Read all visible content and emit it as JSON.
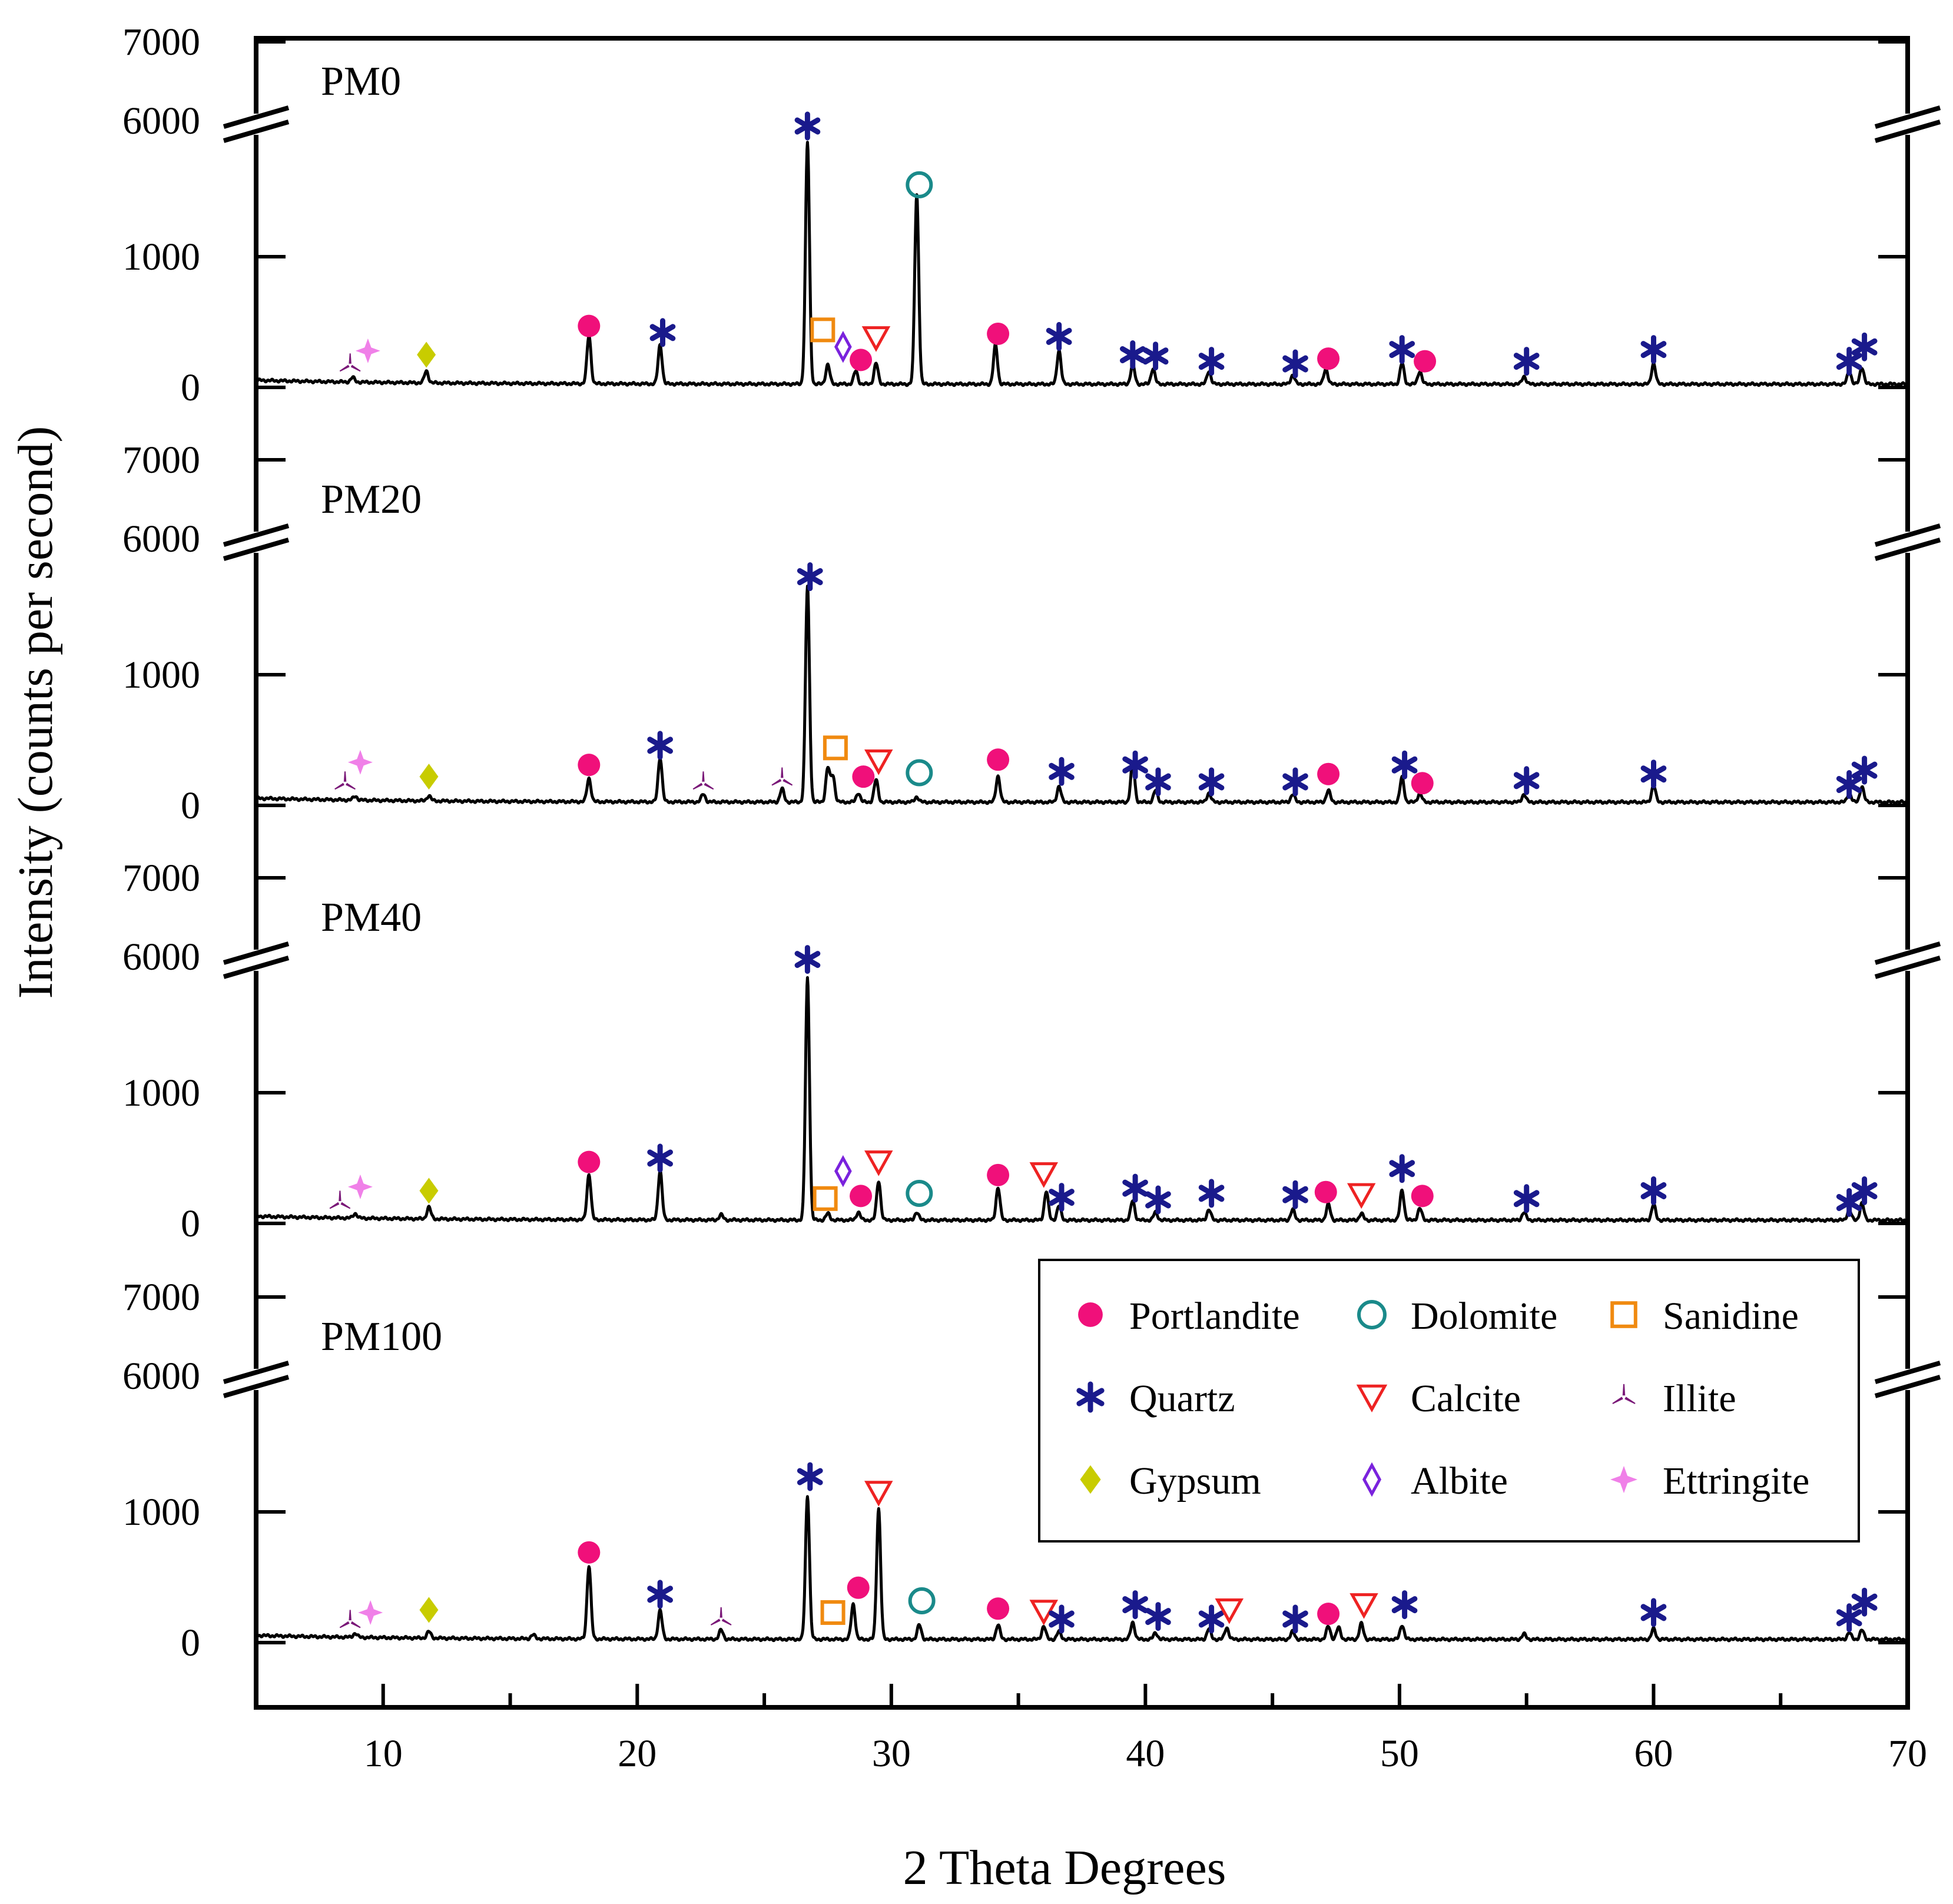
{
  "chart_data": {
    "type": "line",
    "subtype": "stacked XRD patterns with broken y-axis",
    "xlabel": "2 Theta Degrees",
    "ylabel": "Intensity (counts per second)",
    "xlim": [
      5,
      70
    ],
    "x_ticks": [
      10,
      20,
      30,
      40,
      50,
      60,
      70
    ],
    "y_tick_labels": [
      "0",
      "1000",
      "6000",
      "7000"
    ],
    "y_break": "between 1000 and 6000",
    "colors": {
      "Portlandite": "#f0107a",
      "Quartz": "#1a1a8c",
      "Gypsum": "#c8cc00",
      "Dolomite": "#1a8a8a",
      "Calcite": "#ee2222",
      "Albite": "#7a22dd",
      "Sanidine": "#f08a10",
      "Illite": "#7a1878",
      "Ettringite": "#f080e8"
    },
    "legend": [
      {
        "name": "Portlandite",
        "shape": "filled-circle"
      },
      {
        "name": "Dolomite",
        "shape": "open-circle"
      },
      {
        "name": "Sanidine",
        "shape": "open-square"
      },
      {
        "name": "Quartz",
        "shape": "asterisk"
      },
      {
        "name": "Calcite",
        "shape": "open-triangle-down"
      },
      {
        "name": "Illite",
        "shape": "tri-star"
      },
      {
        "name": "Gypsum",
        "shape": "filled-diamond"
      },
      {
        "name": "Albite",
        "shape": "open-diamond"
      },
      {
        "name": "Ettringite",
        "shape": "four-point-star"
      }
    ],
    "series": [
      {
        "name": "PM0",
        "peaks": [
          [
            8.8,
            35
          ],
          [
            11.7,
            90
          ],
          [
            18.1,
            370
          ],
          [
            20.9,
            300
          ],
          [
            26.7,
            1850
          ],
          [
            27.5,
            150
          ],
          [
            28.6,
            100
          ],
          [
            29.4,
            160
          ],
          [
            31.0,
            1450
          ],
          [
            34.1,
            300
          ],
          [
            36.6,
            260
          ],
          [
            39.5,
            150
          ],
          [
            40.3,
            120
          ],
          [
            42.5,
            100
          ],
          [
            45.8,
            70
          ],
          [
            47.1,
            120
          ],
          [
            50.1,
            160
          ],
          [
            50.8,
            100
          ],
          [
            54.9,
            60
          ],
          [
            60.0,
            160
          ],
          [
            67.7,
            100
          ],
          [
            68.2,
            130
          ]
        ],
        "markers": [
          {
            "x": 8.7,
            "i": 170,
            "phase": "Illite"
          },
          {
            "x": 9.4,
            "i": 280,
            "phase": "Ettringite"
          },
          {
            "x": 11.7,
            "i": 250,
            "phase": "Gypsum"
          },
          {
            "x": 18.1,
            "i": 470,
            "phase": "Portlandite"
          },
          {
            "x": 21.0,
            "i": 420,
            "phase": "Quartz"
          },
          {
            "x": 26.7,
            "i": 2000,
            "phase": "Quartz"
          },
          {
            "x": 27.3,
            "i": 440,
            "phase": "Sanidine"
          },
          {
            "x": 28.1,
            "i": 310,
            "phase": "Albite"
          },
          {
            "x": 28.8,
            "i": 210,
            "phase": "Portlandite"
          },
          {
            "x": 29.4,
            "i": 380,
            "phase": "Calcite"
          },
          {
            "x": 31.1,
            "i": 1550,
            "phase": "Dolomite"
          },
          {
            "x": 34.2,
            "i": 410,
            "phase": "Portlandite"
          },
          {
            "x": 36.6,
            "i": 390,
            "phase": "Quartz"
          },
          {
            "x": 39.5,
            "i": 250,
            "phase": "Quartz"
          },
          {
            "x": 40.4,
            "i": 240,
            "phase": "Quartz"
          },
          {
            "x": 42.6,
            "i": 200,
            "phase": "Quartz"
          },
          {
            "x": 45.9,
            "i": 180,
            "phase": "Quartz"
          },
          {
            "x": 47.2,
            "i": 220,
            "phase": "Portlandite"
          },
          {
            "x": 50.1,
            "i": 290,
            "phase": "Quartz"
          },
          {
            "x": 51.0,
            "i": 200,
            "phase": "Portlandite"
          },
          {
            "x": 55.0,
            "i": 200,
            "phase": "Quartz"
          },
          {
            "x": 60.0,
            "i": 290,
            "phase": "Quartz"
          },
          {
            "x": 67.7,
            "i": 200,
            "phase": "Quartz"
          },
          {
            "x": 68.3,
            "i": 310,
            "phase": "Quartz"
          }
        ]
      },
      {
        "name": "PM20",
        "peaks": [
          [
            8.9,
            30
          ],
          [
            11.8,
            40
          ],
          [
            18.1,
            180
          ],
          [
            20.9,
            340
          ],
          [
            22.6,
            60
          ],
          [
            25.7,
            100
          ],
          [
            26.7,
            1650
          ],
          [
            27.5,
            260
          ],
          [
            27.7,
            200
          ],
          [
            28.7,
            70
          ],
          [
            29.4,
            170
          ],
          [
            31.0,
            40
          ],
          [
            34.2,
            200
          ],
          [
            36.6,
            120
          ],
          [
            39.5,
            300
          ],
          [
            40.4,
            90
          ],
          [
            42.5,
            70
          ],
          [
            45.8,
            60
          ],
          [
            47.2,
            90
          ],
          [
            50.1,
            190
          ],
          [
            50.8,
            70
          ],
          [
            54.9,
            60
          ],
          [
            60.0,
            130
          ],
          [
            67.7,
            70
          ],
          [
            68.2,
            120
          ]
        ],
        "markers": [
          {
            "x": 8.5,
            "i": 170,
            "phase": "Illite"
          },
          {
            "x": 9.1,
            "i": 330,
            "phase": "Ettringite"
          },
          {
            "x": 11.8,
            "i": 220,
            "phase": "Gypsum"
          },
          {
            "x": 18.1,
            "i": 310,
            "phase": "Portlandite"
          },
          {
            "x": 20.9,
            "i": 460,
            "phase": "Quartz"
          },
          {
            "x": 22.6,
            "i": 170,
            "phase": "Illite"
          },
          {
            "x": 25.7,
            "i": 200,
            "phase": "Illite"
          },
          {
            "x": 26.8,
            "i": 1750,
            "phase": "Quartz"
          },
          {
            "x": 27.8,
            "i": 440,
            "phase": "Sanidine"
          },
          {
            "x": 28.9,
            "i": 220,
            "phase": "Portlandite"
          },
          {
            "x": 29.5,
            "i": 340,
            "phase": "Calcite"
          },
          {
            "x": 31.1,
            "i": 250,
            "phase": "Dolomite"
          },
          {
            "x": 34.2,
            "i": 350,
            "phase": "Portlandite"
          },
          {
            "x": 36.7,
            "i": 260,
            "phase": "Quartz"
          },
          {
            "x": 39.6,
            "i": 310,
            "phase": "Quartz"
          },
          {
            "x": 40.5,
            "i": 180,
            "phase": "Quartz"
          },
          {
            "x": 42.6,
            "i": 180,
            "phase": "Quartz"
          },
          {
            "x": 45.9,
            "i": 180,
            "phase": "Quartz"
          },
          {
            "x": 47.2,
            "i": 240,
            "phase": "Portlandite"
          },
          {
            "x": 50.2,
            "i": 310,
            "phase": "Quartz"
          },
          {
            "x": 50.9,
            "i": 170,
            "phase": "Portlandite"
          },
          {
            "x": 55.0,
            "i": 190,
            "phase": "Quartz"
          },
          {
            "x": 60.0,
            "i": 240,
            "phase": "Quartz"
          },
          {
            "x": 67.7,
            "i": 160,
            "phase": "Quartz"
          },
          {
            "x": 68.3,
            "i": 270,
            "phase": "Quartz"
          }
        ]
      },
      {
        "name": "PM40",
        "peaks": [
          [
            8.9,
            35
          ],
          [
            11.8,
            90
          ],
          [
            18.1,
            350
          ],
          [
            20.9,
            380
          ],
          [
            23.3,
            40
          ],
          [
            26.7,
            1850
          ],
          [
            27.5,
            50
          ],
          [
            28.7,
            60
          ],
          [
            29.5,
            300
          ],
          [
            31.0,
            60
          ],
          [
            34.2,
            250
          ],
          [
            36.1,
            220
          ],
          [
            36.6,
            110
          ],
          [
            39.5,
            150
          ],
          [
            40.4,
            60
          ],
          [
            42.5,
            80
          ],
          [
            45.8,
            80
          ],
          [
            47.2,
            120
          ],
          [
            48.5,
            50
          ],
          [
            50.1,
            230
          ],
          [
            50.8,
            90
          ],
          [
            54.9,
            60
          ],
          [
            60.0,
            120
          ],
          [
            67.7,
            80
          ],
          [
            68.2,
            130
          ]
        ],
        "markers": [
          {
            "x": 8.3,
            "i": 160,
            "phase": "Illite"
          },
          {
            "x": 9.1,
            "i": 280,
            "phase": "Ettringite"
          },
          {
            "x": 11.8,
            "i": 250,
            "phase": "Gypsum"
          },
          {
            "x": 18.1,
            "i": 470,
            "phase": "Portlandite"
          },
          {
            "x": 20.9,
            "i": 500,
            "phase": "Quartz"
          },
          {
            "x": 26.7,
            "i": 2020,
            "phase": "Quartz"
          },
          {
            "x": 27.4,
            "i": 190,
            "phase": "Sanidine"
          },
          {
            "x": 28.1,
            "i": 400,
            "phase": "Albite"
          },
          {
            "x": 28.8,
            "i": 210,
            "phase": "Portlandite"
          },
          {
            "x": 29.5,
            "i": 470,
            "phase": "Calcite"
          },
          {
            "x": 31.1,
            "i": 230,
            "phase": "Dolomite"
          },
          {
            "x": 34.2,
            "i": 370,
            "phase": "Portlandite"
          },
          {
            "x": 36.0,
            "i": 380,
            "phase": "Calcite"
          },
          {
            "x": 36.7,
            "i": 200,
            "phase": "Quartz"
          },
          {
            "x": 39.6,
            "i": 270,
            "phase": "Quartz"
          },
          {
            "x": 40.5,
            "i": 180,
            "phase": "Quartz"
          },
          {
            "x": 42.6,
            "i": 230,
            "phase": "Quartz"
          },
          {
            "x": 45.9,
            "i": 220,
            "phase": "Quartz"
          },
          {
            "x": 47.1,
            "i": 240,
            "phase": "Portlandite"
          },
          {
            "x": 48.5,
            "i": 220,
            "phase": "Calcite"
          },
          {
            "x": 50.1,
            "i": 420,
            "phase": "Quartz"
          },
          {
            "x": 50.9,
            "i": 210,
            "phase": "Portlandite"
          },
          {
            "x": 55.0,
            "i": 190,
            "phase": "Quartz"
          },
          {
            "x": 60.0,
            "i": 250,
            "phase": "Quartz"
          },
          {
            "x": 67.7,
            "i": 160,
            "phase": "Quartz"
          },
          {
            "x": 68.3,
            "i": 250,
            "phase": "Quartz"
          }
        ]
      },
      {
        "name": "PM100",
        "peaks": [
          [
            8.9,
            30
          ],
          [
            11.8,
            50
          ],
          [
            15.9,
            30
          ],
          [
            18.1,
            560
          ],
          [
            20.9,
            220
          ],
          [
            23.3,
            70
          ],
          [
            26.7,
            1100
          ],
          [
            28.5,
            270
          ],
          [
            29.5,
            1000
          ],
          [
            31.1,
            110
          ],
          [
            34.2,
            110
          ],
          [
            36.0,
            100
          ],
          [
            36.6,
            60
          ],
          [
            39.5,
            130
          ],
          [
            40.4,
            50
          ],
          [
            42.5,
            80
          ],
          [
            43.2,
            90
          ],
          [
            45.8,
            60
          ],
          [
            47.2,
            100
          ],
          [
            47.6,
            90
          ],
          [
            48.5,
            120
          ],
          [
            50.1,
            110
          ],
          [
            54.9,
            40
          ],
          [
            60.0,
            80
          ],
          [
            67.7,
            50
          ],
          [
            68.2,
            70
          ]
        ],
        "markers": [
          {
            "x": 8.7,
            "i": 160,
            "phase": "Illite"
          },
          {
            "x": 9.5,
            "i": 230,
            "phase": "Ettringite"
          },
          {
            "x": 11.8,
            "i": 250,
            "phase": "Gypsum"
          },
          {
            "x": 18.1,
            "i": 690,
            "phase": "Portlandite"
          },
          {
            "x": 20.9,
            "i": 370,
            "phase": "Quartz"
          },
          {
            "x": 23.3,
            "i": 180,
            "phase": "Illite"
          },
          {
            "x": 26.8,
            "i": 1270,
            "phase": "Quartz"
          },
          {
            "x": 27.7,
            "i": 230,
            "phase": "Sanidine"
          },
          {
            "x": 28.7,
            "i": 420,
            "phase": "Portlandite"
          },
          {
            "x": 29.5,
            "i": 1150,
            "phase": "Calcite"
          },
          {
            "x": 31.2,
            "i": 320,
            "phase": "Dolomite"
          },
          {
            "x": 34.2,
            "i": 260,
            "phase": "Portlandite"
          },
          {
            "x": 36.0,
            "i": 240,
            "phase": "Calcite"
          },
          {
            "x": 36.7,
            "i": 180,
            "phase": "Quartz"
          },
          {
            "x": 39.6,
            "i": 290,
            "phase": "Quartz"
          },
          {
            "x": 40.5,
            "i": 200,
            "phase": "Quartz"
          },
          {
            "x": 42.6,
            "i": 180,
            "phase": "Quartz"
          },
          {
            "x": 43.3,
            "i": 250,
            "phase": "Calcite"
          },
          {
            "x": 45.9,
            "i": 180,
            "phase": "Quartz"
          },
          {
            "x": 47.2,
            "i": 220,
            "phase": "Portlandite"
          },
          {
            "x": 48.6,
            "i": 290,
            "phase": "Calcite"
          },
          {
            "x": 50.2,
            "i": 290,
            "phase": "Quartz"
          },
          {
            "x": 60.0,
            "i": 230,
            "phase": "Quartz"
          },
          {
            "x": 67.7,
            "i": 190,
            "phase": "Quartz"
          },
          {
            "x": 68.3,
            "i": 310,
            "phase": "Quartz"
          }
        ]
      }
    ]
  }
}
